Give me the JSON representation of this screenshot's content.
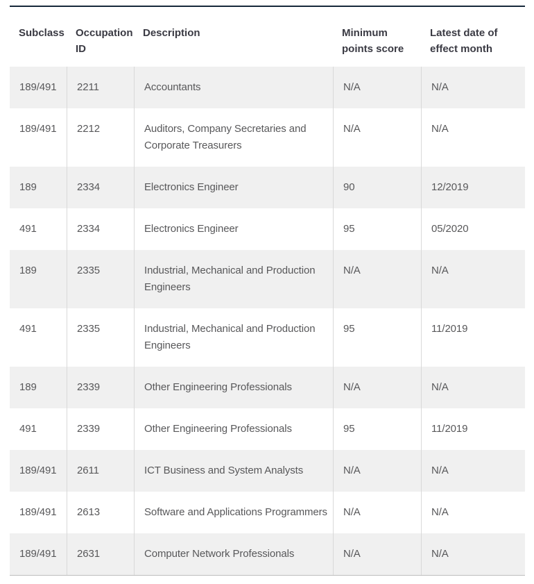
{
  "table": {
    "columns": [
      {
        "key": "subclass",
        "label": "Subclass"
      },
      {
        "key": "occupation_id",
        "label": "Occupation ID"
      },
      {
        "key": "description",
        "label": "Description"
      },
      {
        "key": "min_points",
        "label": "Minimum points score"
      },
      {
        "key": "latest_date",
        "label": "Latest date of effect month"
      }
    ],
    "rows": [
      [
        "189/491",
        "2211",
        "Accountants",
        "N/A",
        "N/A"
      ],
      [
        "189/491",
        "2212",
        "Auditors, Company Secretaries and Corporate Treasurers",
        "N/A",
        "N/A"
      ],
      [
        "189",
        "2334",
        "Electronics Engineer",
        "90",
        "12/2019"
      ],
      [
        "491",
        "2334",
        "Electronics Engineer",
        "95",
        "05/2020"
      ],
      [
        "189",
        "2335",
        "Industrial, Mechanical and Production Engineers",
        "N/A",
        "N/A"
      ],
      [
        "491",
        "2335",
        "Industrial, Mechanical and Production Engineers",
        "95",
        "11/2019"
      ],
      [
        "189",
        "2339",
        "Other Engineering Professionals",
        "N/A",
        "N/A"
      ],
      [
        "491",
        "2339",
        "Other Engineering Professionals",
        "95",
        "11/2019"
      ],
      [
        "189/491",
        "2611",
        "ICT Business and System Analysts",
        "N/A",
        "N/A"
      ],
      [
        "189/491",
        "2613",
        "Software and Applications Programmers",
        "N/A",
        "N/A"
      ],
      [
        "189/491",
        "2631",
        "Computer Network Professionals",
        "N/A",
        "N/A"
      ]
    ]
  },
  "colors": {
    "top_border": "#16283a",
    "bottom_border": "#bdbdbd",
    "row_stripe": "#f0f0f0",
    "separator": "#d9d9d9",
    "header_text": "#3a3a43",
    "body_text": "#58585a",
    "page_bg": "#ffffff"
  }
}
